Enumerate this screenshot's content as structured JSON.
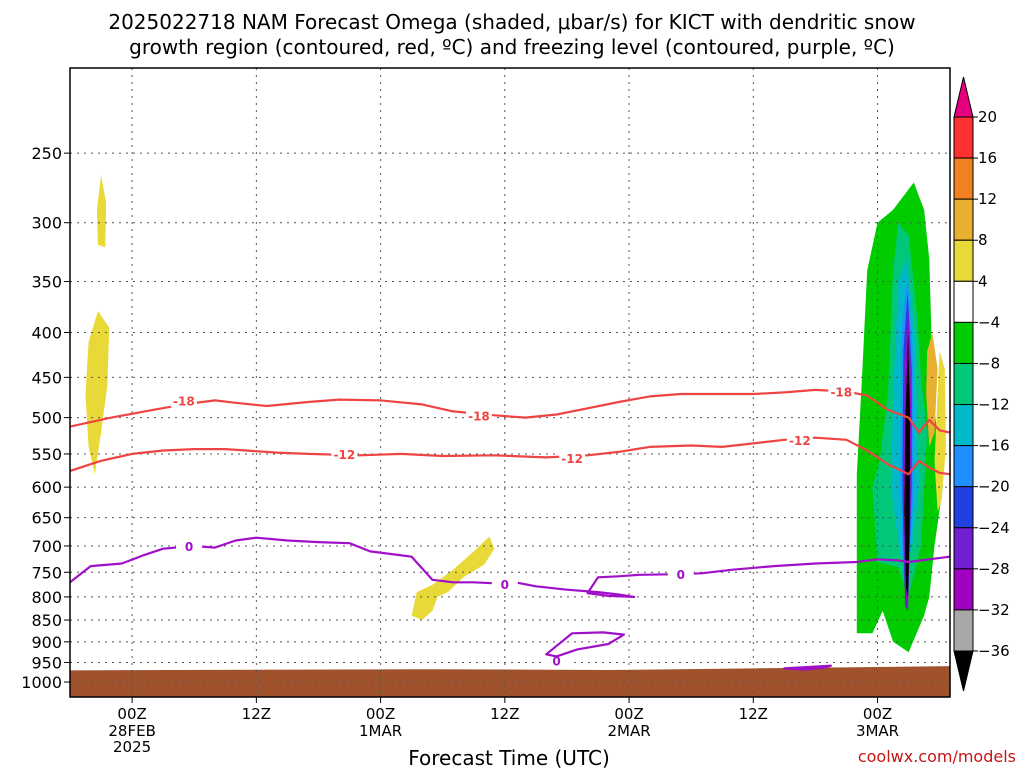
{
  "chart_data": {
    "type": "area",
    "title": "2025022718 NAM Forecast Omega (shaded, μbar/s) for KICT with dendritic snow growth region (contoured, red, ºC) and freezing level (contoured, purple, ºC)",
    "title_lines": [
      "2025022718 NAM Forecast Omega (shaded, μbar/s) for KICT with dendritic snow",
      "growth region (contoured, red, ºC) and freezing level (contoured, purple, ºC)"
    ],
    "xlabel": "Forecast Time (UTC)",
    "ylabel": "",
    "credit": "coolwx.com/models",
    "x_range_hours": [
      -6,
      79
    ],
    "y_scale": "log",
    "ylim": [
      1040,
      200
    ],
    "y_ticks": [
      250,
      300,
      350,
      400,
      450,
      500,
      550,
      600,
      650,
      700,
      750,
      800,
      850,
      900,
      950,
      1000
    ],
    "x_ticks": [
      {
        "h": 0,
        "label": "00Z",
        "sub": [
          "28FEB",
          "2025"
        ]
      },
      {
        "h": 12,
        "label": "12Z",
        "sub": []
      },
      {
        "h": 24,
        "label": "00Z",
        "sub": [
          "1MAR"
        ]
      },
      {
        "h": 36,
        "label": "12Z",
        "sub": []
      },
      {
        "h": 48,
        "label": "00Z",
        "sub": [
          "2MAR"
        ]
      },
      {
        "h": 60,
        "label": "12Z",
        "sub": []
      },
      {
        "h": 72,
        "label": "00Z",
        "sub": [
          "3MAR"
        ]
      }
    ],
    "grid": true,
    "colorbar": {
      "levels": [
        20,
        16,
        12,
        8,
        4,
        -4,
        -8,
        -12,
        -16,
        -20,
        -24,
        -28,
        -32,
        -36
      ],
      "colors": [
        "#e6007e",
        "#ff3030",
        "#f08020",
        "#e8b030",
        "#e8d838",
        "#ffffff",
        "#00cc00",
        "#00c878",
        "#00b8c8",
        "#1e90ff",
        "#2040e0",
        "#7020d0",
        "#a000c0",
        "#a8a8a8",
        "#000000"
      ]
    },
    "ground_color": "#a0522d",
    "ground_top_hpa": [
      [
        -6,
        970
      ],
      [
        4,
        969
      ],
      [
        28,
        967
      ],
      [
        38,
        968
      ],
      [
        46,
        969
      ],
      [
        60,
        965
      ],
      [
        70,
        962
      ],
      [
        79,
        959
      ]
    ],
    "contours": [
      {
        "level": -18,
        "color": "#ee4444",
        "labels": [
          {
            "h": 5,
            "p": 478,
            "text": "-18"
          },
          {
            "h": 33.5,
            "p": 497,
            "text": "-18"
          },
          {
            "h": 68.5,
            "p": 467,
            "text": "-18"
          }
        ],
        "points": [
          [
            -6,
            512
          ],
          [
            -2,
            500
          ],
          [
            2,
            490
          ],
          [
            5,
            483
          ],
          [
            8,
            478
          ],
          [
            10,
            481
          ],
          [
            13,
            485
          ],
          [
            17,
            480
          ],
          [
            20,
            477
          ],
          [
            24,
            478
          ],
          [
            28,
            483
          ],
          [
            31,
            492
          ],
          [
            35,
            497
          ],
          [
            38,
            500
          ],
          [
            41,
            496
          ],
          [
            44,
            488
          ],
          [
            47,
            480
          ],
          [
            50,
            473
          ],
          [
            53,
            470
          ],
          [
            56,
            470
          ],
          [
            60,
            470
          ],
          [
            63,
            468
          ],
          [
            66,
            465
          ],
          [
            69,
            467
          ],
          [
            71,
            472
          ],
          [
            73,
            490
          ],
          [
            75,
            500
          ],
          [
            76,
            520
          ],
          [
            77,
            503
          ],
          [
            78,
            517
          ],
          [
            79,
            520
          ]
        ]
      },
      {
        "level": -12,
        "color": "#ee4444",
        "labels": [
          {
            "h": 20.5,
            "p": 550,
            "text": "-12"
          },
          {
            "h": 42.5,
            "p": 556,
            "text": "-12"
          },
          {
            "h": 64.5,
            "p": 530,
            "text": "-12"
          }
        ],
        "points": [
          [
            -6,
            575
          ],
          [
            -3,
            560
          ],
          [
            0,
            550
          ],
          [
            3,
            545
          ],
          [
            6,
            543
          ],
          [
            9,
            543
          ],
          [
            11,
            545
          ],
          [
            14,
            548
          ],
          [
            17,
            550
          ],
          [
            22,
            552
          ],
          [
            26,
            550
          ],
          [
            30,
            553
          ],
          [
            35,
            552
          ],
          [
            40,
            555
          ],
          [
            44,
            552
          ],
          [
            47,
            547
          ],
          [
            50,
            540
          ],
          [
            54,
            538
          ],
          [
            57,
            540
          ],
          [
            60,
            535
          ],
          [
            63,
            530
          ],
          [
            66,
            527
          ],
          [
            69,
            530
          ],
          [
            71,
            545
          ],
          [
            73,
            565
          ],
          [
            75,
            580
          ],
          [
            76,
            560
          ],
          [
            77,
            570
          ],
          [
            78,
            578
          ],
          [
            79,
            580
          ]
        ]
      },
      {
        "level": 0,
        "color": "#a010c8",
        "labels": [
          {
            "h": 5.5,
            "p": 700,
            "text": "0"
          },
          {
            "h": 36,
            "p": 773,
            "text": "0"
          },
          {
            "h": 53,
            "p": 753,
            "text": "0"
          },
          {
            "h": 41,
            "p": 945,
            "text": "0"
          }
        ],
        "points": [
          [
            -6,
            770
          ],
          [
            -4,
            738
          ],
          [
            -1,
            733
          ],
          [
            1,
            718
          ],
          [
            3,
            705
          ],
          [
            6,
            700
          ],
          [
            8,
            703
          ],
          [
            10,
            690
          ],
          [
            12,
            685
          ],
          [
            15,
            690
          ],
          [
            18,
            693
          ],
          [
            21,
            695
          ],
          [
            23,
            710
          ],
          [
            25,
            715
          ],
          [
            27,
            720
          ],
          [
            28,
            742
          ],
          [
            29,
            765
          ],
          [
            31,
            770
          ],
          [
            33,
            770
          ],
          [
            35,
            772
          ],
          [
            37,
            770
          ],
          [
            39,
            778
          ],
          [
            42,
            785
          ],
          [
            45,
            790
          ],
          [
            47,
            795
          ],
          [
            48.5,
            800
          ],
          [
            46,
            798
          ],
          [
            44,
            792
          ],
          [
            45,
            760
          ],
          [
            47,
            758
          ],
          [
            49,
            755
          ],
          [
            52,
            754
          ],
          [
            55,
            752
          ],
          [
            58,
            745
          ],
          [
            62,
            738
          ],
          [
            66,
            733
          ],
          [
            70,
            730
          ],
          [
            72,
            725
          ],
          [
            74,
            727
          ],
          [
            75,
            730
          ],
          [
            77,
            725
          ],
          [
            79,
            720
          ]
        ]
      }
    ],
    "closed_contours": [
      {
        "level": 0,
        "color": "#a010c8",
        "points": [
          [
            40,
            930
          ],
          [
            42.5,
            880
          ],
          [
            45.5,
            878
          ],
          [
            47.5,
            883
          ],
          [
            46,
            905
          ],
          [
            43,
            918
          ],
          [
            41,
            935
          ]
        ]
      },
      {
        "level": 0,
        "color": "#a010c8",
        "points": [
          [
            63,
            965
          ],
          [
            67.5,
            958
          ],
          [
            67,
            962
          ],
          [
            65,
            968
          ]
        ]
      }
    ],
    "omega_features": [
      {
        "name": "yellow-upper",
        "color": "#e8d838",
        "points": [
          [
            -3,
            265
          ],
          [
            -2.5,
            285
          ],
          [
            -2.6,
            320
          ],
          [
            -3.3,
            318
          ],
          [
            -3.4,
            290
          ]
        ]
      },
      {
        "name": "yellow-column",
        "color": "#e8d838",
        "points": [
          [
            -4.2,
            410
          ],
          [
            -3.3,
            378
          ],
          [
            -2.2,
            395
          ],
          [
            -2.4,
            460
          ],
          [
            -3.0,
            520
          ],
          [
            -3.6,
            580
          ],
          [
            -4.2,
            540
          ],
          [
            -4.5,
            470
          ]
        ]
      },
      {
        "name": "yellow-diagonal",
        "color": "#e8d838",
        "points": [
          [
            27,
            840
          ],
          [
            27.5,
            790
          ],
          [
            29,
            775
          ],
          [
            31,
            745
          ],
          [
            33,
            710
          ],
          [
            34.5,
            683
          ],
          [
            35,
            705
          ],
          [
            34,
            735
          ],
          [
            32,
            760
          ],
          [
            30.5,
            790
          ],
          [
            29.5,
            800
          ],
          [
            29,
            830
          ],
          [
            28,
            850
          ]
        ]
      },
      {
        "name": "green-outer",
        "color": "#00cc00",
        "points": [
          [
            70,
            880
          ],
          [
            70,
            580
          ],
          [
            70.5,
            450
          ],
          [
            71,
            340
          ],
          [
            72,
            300
          ],
          [
            73.5,
            290
          ],
          [
            75.5,
            270
          ],
          [
            76.5,
            290
          ],
          [
            77,
            330
          ],
          [
            77.2,
            400
          ],
          [
            77,
            450
          ],
          [
            77.8,
            520
          ],
          [
            78.3,
            600
          ],
          [
            77.5,
            700
          ],
          [
            77,
            800
          ],
          [
            76.5,
            840
          ],
          [
            75,
            925
          ],
          [
            73.5,
            900
          ],
          [
            72.5,
            830
          ],
          [
            71.5,
            880
          ]
        ]
      },
      {
        "name": "teal-ring",
        "color": "#00c878",
        "points": [
          [
            72,
            730
          ],
          [
            71.5,
            600
          ],
          [
            72.2,
            560
          ],
          [
            73,
            470
          ],
          [
            73.5,
            340
          ],
          [
            74,
            300
          ],
          [
            75,
            310
          ],
          [
            75.8,
            380
          ],
          [
            76.2,
            450
          ],
          [
            76.8,
            520
          ],
          [
            76.2,
            700
          ],
          [
            75,
            800
          ],
          [
            74,
            740
          ]
        ]
      },
      {
        "name": "cyan-inner",
        "color": "#00b8c8",
        "points": [
          [
            73.3,
            600
          ],
          [
            73.5,
            470
          ],
          [
            74,
            350
          ],
          [
            74.8,
            330
          ],
          [
            75.6,
            400
          ],
          [
            76,
            600
          ],
          [
            75.3,
            710
          ],
          [
            74.2,
            720
          ]
        ]
      },
      {
        "name": "blue-inner",
        "color": "#1e90ff",
        "points": [
          [
            74.2,
            600
          ],
          [
            74.3,
            400
          ],
          [
            74.9,
            345
          ],
          [
            75.4,
            420
          ],
          [
            75.5,
            600
          ],
          [
            75.0,
            760
          ],
          [
            74.5,
            760
          ]
        ]
      },
      {
        "name": "darkblue-inner",
        "color": "#2040e0",
        "points": [
          [
            74.4,
            600
          ],
          [
            74.5,
            420
          ],
          [
            74.9,
            360
          ],
          [
            75.3,
            440
          ],
          [
            75.3,
            600
          ],
          [
            75.0,
            780
          ],
          [
            74.6,
            780
          ]
        ]
      },
      {
        "name": "purple-core",
        "color": "#7020d0",
        "points": [
          [
            74.5,
            600
          ],
          [
            74.6,
            430
          ],
          [
            74.95,
            370
          ],
          [
            75.25,
            450
          ],
          [
            75.2,
            620
          ],
          [
            74.95,
            830
          ],
          [
            74.65,
            820
          ]
        ]
      },
      {
        "name": "magenta-core",
        "color": "#a000c0",
        "points": [
          [
            74.55,
            620
          ],
          [
            74.7,
            450
          ],
          [
            74.95,
            380
          ],
          [
            75.2,
            470
          ],
          [
            75.15,
            640
          ],
          [
            74.95,
            810
          ],
          [
            74.7,
            800
          ]
        ]
      },
      {
        "name": "black-core",
        "color": "#000000",
        "points": [
          [
            74.6,
            640
          ],
          [
            74.7,
            500
          ],
          [
            74.95,
            400
          ],
          [
            75.15,
            500
          ],
          [
            75.1,
            660
          ],
          [
            74.95,
            800
          ],
          [
            74.75,
            780
          ]
        ]
      },
      {
        "name": "orange-right",
        "color": "#e8b030",
        "points": [
          [
            76.7,
            470
          ],
          [
            76.8,
            420
          ],
          [
            77.3,
            400
          ],
          [
            77.8,
            440
          ],
          [
            77.5,
            520
          ],
          [
            77.0,
            540
          ]
        ]
      },
      {
        "name": "yellow-right",
        "color": "#e8d838",
        "points": [
          [
            77.5,
            560
          ],
          [
            78.0,
            420
          ],
          [
            78.5,
            440
          ],
          [
            78.6,
            540
          ],
          [
            78.2,
            620
          ],
          [
            77.8,
            640
          ]
        ]
      }
    ]
  }
}
